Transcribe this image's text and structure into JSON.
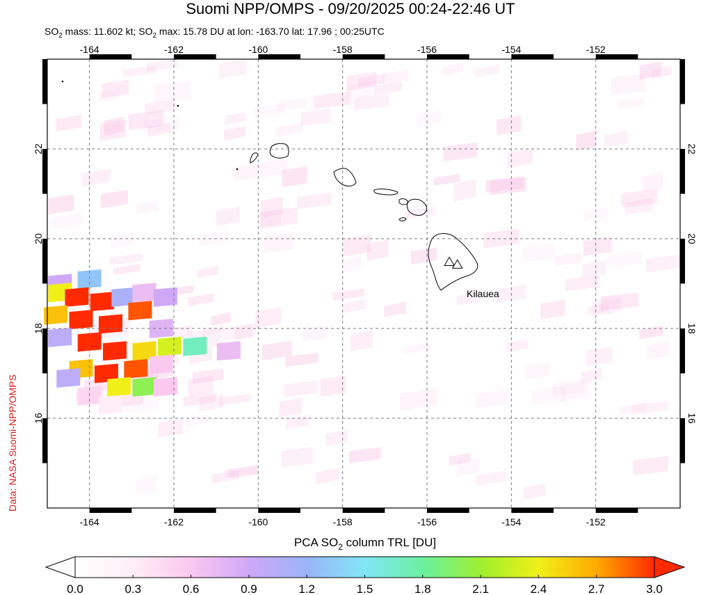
{
  "title": "Suomi NPP/OMPS - 09/20/2025 00:24-22:46 UT",
  "subtitle": {
    "part1": "SO",
    "sub1": "2",
    "part2": " mass: 11.602 kt; SO",
    "sub2": "2",
    "part3": " max: 15.78 DU at lon: -163.70 lat: 17.96 ; 00:25UTC"
  },
  "credit": "Data: NASA Suomi-NPP/OMPS",
  "volcano_label": "Kilauea",
  "map": {
    "lon_range": [
      -165.0,
      -150.0
    ],
    "lat_range": [
      14.0,
      24.0
    ],
    "lon_ticks": [
      "-164",
      "-162",
      "-160",
      "-158",
      "-156",
      "-154",
      "-152"
    ],
    "lon_tick_values": [
      -164,
      -162,
      -160,
      -158,
      -156,
      -154,
      -152
    ],
    "lat_ticks": [
      "16",
      "18",
      "20",
      "22"
    ],
    "lat_tick_values": [
      16,
      18,
      20,
      22
    ],
    "grid": "dashed",
    "volcano_markers": [
      {
        "name": "summit-1",
        "lon": -155.47,
        "lat": 19.48
      },
      {
        "name": "summit-2",
        "lon": -155.28,
        "lat": 19.42
      }
    ]
  },
  "colorbar": {
    "label_pre": "PCA SO",
    "label_sub": "2",
    "label_post": " column TRL [DU]",
    "ticks": [
      "0.0",
      "0.3",
      "0.6",
      "0.9",
      "1.2",
      "1.5",
      "1.8",
      "2.1",
      "2.4",
      "2.7",
      "3.0"
    ],
    "colors": [
      "#ffffff",
      "#ffeef6",
      "#fbc8f0",
      "#cfa8f8",
      "#9ab4f8",
      "#82e6f6",
      "#6af0a0",
      "#9ef030",
      "#f0f018",
      "#ffaa00",
      "#ff2a00"
    ]
  },
  "so2_cells": [
    {
      "lon": -164.7,
      "lat": 19.0,
      "du": 0.9
    },
    {
      "lon": -164.0,
      "lat": 19.1,
      "du": 1.3
    },
    {
      "lon": -164.7,
      "lat": 18.8,
      "du": 2.4
    },
    {
      "lon": -164.3,
      "lat": 18.7,
      "du": 3.0
    },
    {
      "lon": -163.7,
      "lat": 18.6,
      "du": 3.0
    },
    {
      "lon": -163.2,
      "lat": 18.7,
      "du": 1.1
    },
    {
      "lon": -162.7,
      "lat": 18.8,
      "du": 0.7
    },
    {
      "lon": -162.2,
      "lat": 18.7,
      "du": 0.9
    },
    {
      "lon": -164.8,
      "lat": 18.3,
      "du": 2.6
    },
    {
      "lon": -164.2,
      "lat": 18.2,
      "du": 3.0
    },
    {
      "lon": -163.5,
      "lat": 18.1,
      "du": 3.0
    },
    {
      "lon": -162.8,
      "lat": 18.4,
      "du": 2.9
    },
    {
      "lon": -162.3,
      "lat": 18.0,
      "du": 0.8
    },
    {
      "lon": -164.7,
      "lat": 17.8,
      "du": 1.0
    },
    {
      "lon": -164.0,
      "lat": 17.7,
      "du": 3.0
    },
    {
      "lon": -163.4,
      "lat": 17.5,
      "du": 3.0
    },
    {
      "lon": -162.7,
      "lat": 17.5,
      "du": 2.5
    },
    {
      "lon": -162.1,
      "lat": 17.6,
      "du": 2.3
    },
    {
      "lon": -161.5,
      "lat": 17.6,
      "du": 1.7
    },
    {
      "lon": -160.7,
      "lat": 17.5,
      "du": 0.7
    },
    {
      "lon": -164.2,
      "lat": 17.1,
      "du": 2.6
    },
    {
      "lon": -163.6,
      "lat": 17.0,
      "du": 3.0
    },
    {
      "lon": -162.9,
      "lat": 17.1,
      "du": 2.9
    },
    {
      "lon": -162.3,
      "lat": 17.2,
      "du": 0.6
    },
    {
      "lon": -164.5,
      "lat": 16.9,
      "du": 1.0
    },
    {
      "lon": -163.3,
      "lat": 16.7,
      "du": 2.4
    },
    {
      "lon": -162.7,
      "lat": 16.7,
      "du": 2.0
    },
    {
      "lon": -164.0,
      "lat": 16.5,
      "du": 0.5
    },
    {
      "lon": -162.2,
      "lat": 16.7,
      "du": 0.6
    },
    {
      "lon": -163.5,
      "lat": 16.3,
      "du": 0.3
    }
  ]
}
